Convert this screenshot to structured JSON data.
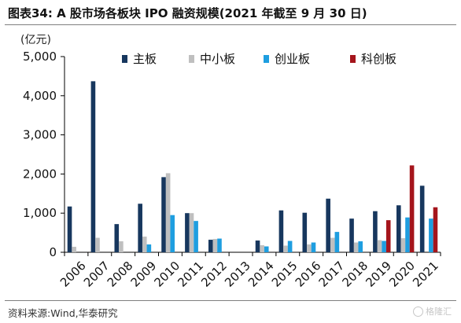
{
  "figure": {
    "title": "图表34:  A 股市场各板块 IPO 融资规模(2021 年截至 9 月 30 日)",
    "source": "资料来源:Wind,华泰研究",
    "watermark": "格隆汇"
  },
  "chart_data": {
    "type": "bar",
    "title": "",
    "unit_label": "(亿元)",
    "xlabel": "",
    "ylabel": "",
    "ylim": [
      0,
      5000
    ],
    "yticks": [
      0,
      1000,
      2000,
      3000,
      4000,
      5000
    ],
    "ytick_labels": [
      "0",
      "1,000",
      "2,000",
      "3,000",
      "4,000",
      "5,000"
    ],
    "grid": false,
    "legend_position": "top",
    "categories": [
      "2006",
      "2007",
      "2008",
      "2009",
      "2010",
      "2011",
      "2012",
      "2013",
      "2014",
      "2015",
      "2016",
      "2017",
      "2018",
      "2019",
      "2020",
      "2021"
    ],
    "series": [
      {
        "name": "主板",
        "color": "#17375e",
        "values": [
          1170,
          4370,
          720,
          1240,
          1920,
          1000,
          320,
          0,
          300,
          1070,
          1010,
          1370,
          860,
          1050,
          1200,
          1700
        ]
      },
      {
        "name": "中小板",
        "color": "#bfbfbf",
        "values": [
          140,
          370,
          280,
          400,
          2020,
          1000,
          340,
          0,
          180,
          170,
          200,
          370,
          250,
          310,
          360,
          0
        ]
      },
      {
        "name": "创业板",
        "color": "#1e9ee0",
        "values": [
          0,
          0,
          0,
          200,
          950,
          800,
          350,
          0,
          150,
          290,
          250,
          520,
          280,
          290,
          890,
          860
        ]
      },
      {
        "name": "科创板",
        "color": "#a5151c",
        "values": [
          0,
          0,
          0,
          0,
          0,
          0,
          0,
          0,
          0,
          0,
          0,
          0,
          0,
          820,
          2220,
          1150
        ]
      }
    ]
  }
}
